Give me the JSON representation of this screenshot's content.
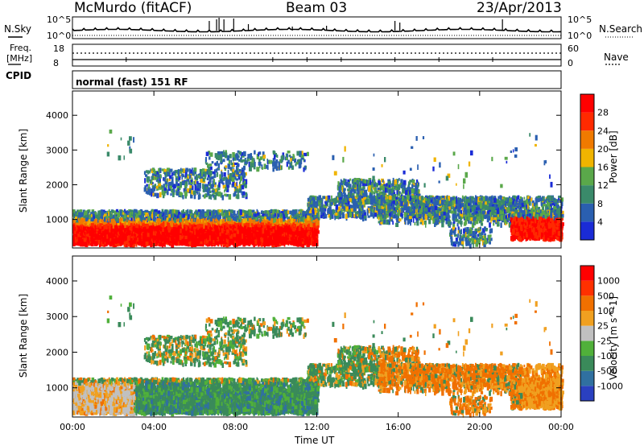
{
  "header": {
    "station": "McMurdo (fitACF)",
    "beam": "Beam 03",
    "date": "23/Apr/2013"
  },
  "side_labels": {
    "nsky": "N.Sky",
    "freq": "Freq.",
    "freq_unit": "[MHz]",
    "cpid": "CPID",
    "nsearch": "N.Search",
    "nave": "Nave"
  },
  "cpid_text": "normal (fast) 151 RF",
  "colors": {
    "power": [
      "#1a2bd6",
      "#2a5fb0",
      "#3a8a6a",
      "#5aa84a",
      "#f0b400",
      "#f07a00",
      "#ff2a00",
      "#ff0000"
    ],
    "velocity": [
      "#2a40c0",
      "#3070a0",
      "#3a8a5a",
      "#50b03a",
      "#c0c0c0",
      "#f0a020",
      "#f07000",
      "#ff3000",
      "#ff0000"
    ]
  },
  "chart_data": [
    {
      "type": "line",
      "panel": "noise",
      "ylabels_left": [
        "10^5",
        "10^0"
      ],
      "ylabels_right": [
        "10^5",
        "10^0"
      ],
      "x": [
        "00:00",
        "04:00",
        "08:00",
        "12:00",
        "16:00",
        "20:00",
        "00:00"
      ],
      "series": [
        {
          "name": "N.Sky",
          "values": [
            18,
            20,
            40,
            22,
            60,
            24,
            20
          ]
        },
        {
          "name": "N.Search",
          "values": [
            4,
            5,
            6,
            5,
            6,
            5,
            5
          ]
        }
      ]
    },
    {
      "type": "line",
      "panel": "frequency_nave",
      "ylabels_left": [
        "18",
        "8"
      ],
      "ylabels_right": [
        "60",
        "0"
      ],
      "series": [
        {
          "name": "Freq",
          "values": [
            10,
            10,
            10,
            10,
            10,
            10,
            10
          ]
        },
        {
          "name": "Nave",
          "values": [
            30,
            30,
            30,
            30,
            30,
            30,
            30
          ]
        }
      ]
    },
    {
      "type": "heatmap",
      "panel": "power",
      "title": "",
      "xlabel": "Time UT",
      "ylabel": "Slant Range [km]",
      "colorbar_label": "Power [dB]",
      "colorbar_ticks": [
        "4",
        "8",
        "12",
        "16",
        "20",
        "24",
        "28"
      ],
      "x_ticks": [
        "00:00",
        "04:00",
        "08:00",
        "12:00",
        "16:00",
        "20:00",
        "00:00"
      ],
      "y_ticks": [
        "1000",
        "2000",
        "3000",
        "4000"
      ],
      "ylim": [
        180,
        4700
      ],
      "xlim_hours": [
        0,
        24
      ]
    },
    {
      "type": "heatmap",
      "panel": "velocity",
      "title": "",
      "xlabel": "Time UT",
      "ylabel": "Slant Range [km]",
      "colorbar_label": "Velocity [m s^-1]",
      "colorbar_ticks": [
        "1000",
        "500",
        "100",
        "25",
        "-25",
        "-100",
        "-500",
        "-1000"
      ],
      "x_ticks": [
        "00:00",
        "04:00",
        "08:00",
        "12:00",
        "16:00",
        "20:00",
        "00:00"
      ],
      "y_ticks": [
        "1000",
        "2000",
        "3000",
        "4000"
      ],
      "ylim": [
        180,
        4700
      ],
      "xlim_hours": [
        0,
        24
      ]
    }
  ],
  "x_axis_title": "Time UT"
}
